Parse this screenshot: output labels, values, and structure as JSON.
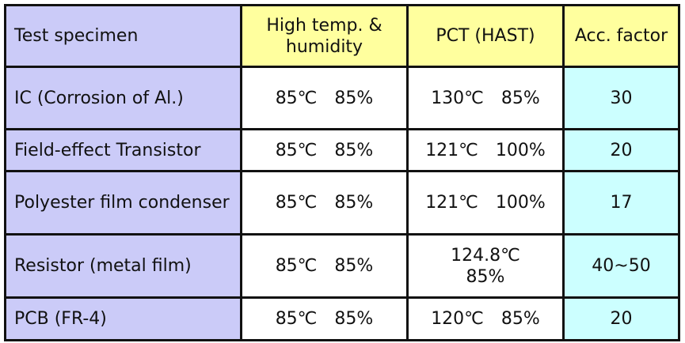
{
  "headers": [
    "Test specimen",
    "High temp. & humidity",
    "PCT (HAST)",
    "Acc. factor"
  ],
  "rows": [
    {
      "specimen": "IC (Corrosion of Al.)",
      "high_temp_humidity": "85℃　85%",
      "pct_hast": "130℃　85%",
      "acc_factor": "30"
    },
    {
      "specimen": "Field-effect Transistor",
      "high_temp_humidity": "85℃　85%",
      "pct_hast": "121℃　100%",
      "acc_factor": "20"
    },
    {
      "specimen": "Polyester film condenser",
      "high_temp_humidity": "85℃　85%",
      "pct_hast": "121℃　100%",
      "acc_factor": "17"
    },
    {
      "specimen": "Resistor (metal film)",
      "high_temp_humidity": "85℃　85%",
      "pct_hast": "124.8℃　85%",
      "acc_factor": "40~50"
    },
    {
      "specimen": "PCB (FR-4)",
      "high_temp_humidity": "85℃　85%",
      "pct_hast": "120℃　85%",
      "acc_factor": "20"
    }
  ],
  "colors": {
    "header": "#ffff9e",
    "first_column": "#cbcbf8",
    "acc_column": "#ccffff",
    "border": "#111111"
  }
}
